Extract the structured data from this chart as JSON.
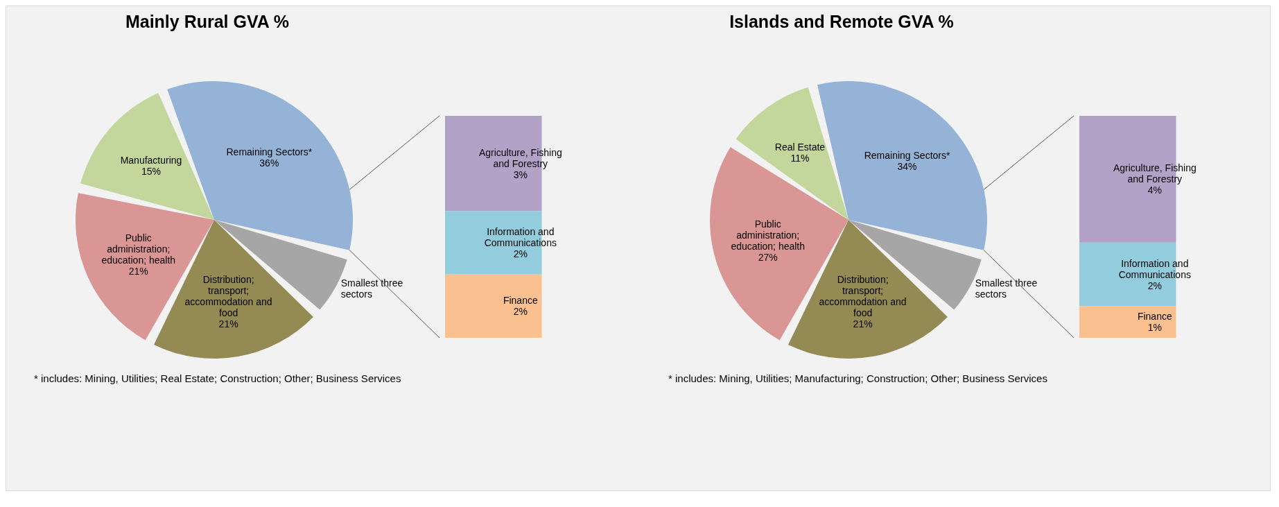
{
  "chart_data": [
    {
      "type": "pie",
      "title": "Mainly Rural GVA %",
      "categories": [
        "Remaining Sectors*",
        "Manufacturing",
        "Public administration; education; health",
        "Distribution; transport; accommodation and food",
        "Smallest three sectors"
      ],
      "values": [
        36,
        15,
        21,
        21,
        7
      ],
      "value_labels": [
        "36%",
        "15%",
        "21%",
        "21%",
        null
      ],
      "colors": [
        "#95b3d7",
        "#c3d69b",
        "#d99694",
        "#948a54",
        "#a6a6a6"
      ],
      "annotations": [
        "* includes: Mining, Utilities; Real Estate; Construction; Other; Business Services"
      ]
    },
    {
      "type": "bar",
      "stacked": true,
      "categories": [
        null
      ],
      "series": [
        {
          "name": "Finance",
          "color": "#fac090",
          "values": [
            2
          ],
          "value_labels": [
            "2%"
          ]
        },
        {
          "name": "Information and Communications",
          "color": "#93cddd",
          "values": [
            2
          ],
          "value_labels": [
            "2%"
          ]
        },
        {
          "name": "Agriculture, Fishing and Forestry",
          "color": "#b3a2c7",
          "values": [
            3
          ],
          "value_labels": [
            "3%"
          ]
        }
      ]
    },
    {
      "type": "pie",
      "title": "Islands and Remote GVA %",
      "categories": [
        "Remaining Sectors*",
        "Real Estate",
        "Public administration; education; health",
        "Distribution; transport; accommodation and food",
        "Smallest three sectors"
      ],
      "values": [
        34,
        11,
        27,
        21,
        7
      ],
      "value_labels": [
        "34%",
        "11%",
        "27%",
        "21%",
        null
      ],
      "colors": [
        "#95b3d7",
        "#c3d69b",
        "#d99694",
        "#948a54",
        "#a6a6a6"
      ],
      "annotations": [
        "* includes: Mining, Utilities; Manufacturing; Construction; Other; Business Services"
      ]
    },
    {
      "type": "bar",
      "stacked": true,
      "categories": [
        null
      ],
      "series": [
        {
          "name": "Finance",
          "color": "#fac090",
          "values": [
            1
          ],
          "value_labels": [
            "1%"
          ]
        },
        {
          "name": "Information and Communications",
          "color": "#93cddd",
          "values": [
            2
          ],
          "value_labels": [
            "2%"
          ]
        },
        {
          "name": "Agriculture, Fishing and Forestry",
          "color": "#b3a2c7",
          "values": [
            4
          ],
          "value_labels": [
            "4%"
          ]
        }
      ]
    }
  ]
}
